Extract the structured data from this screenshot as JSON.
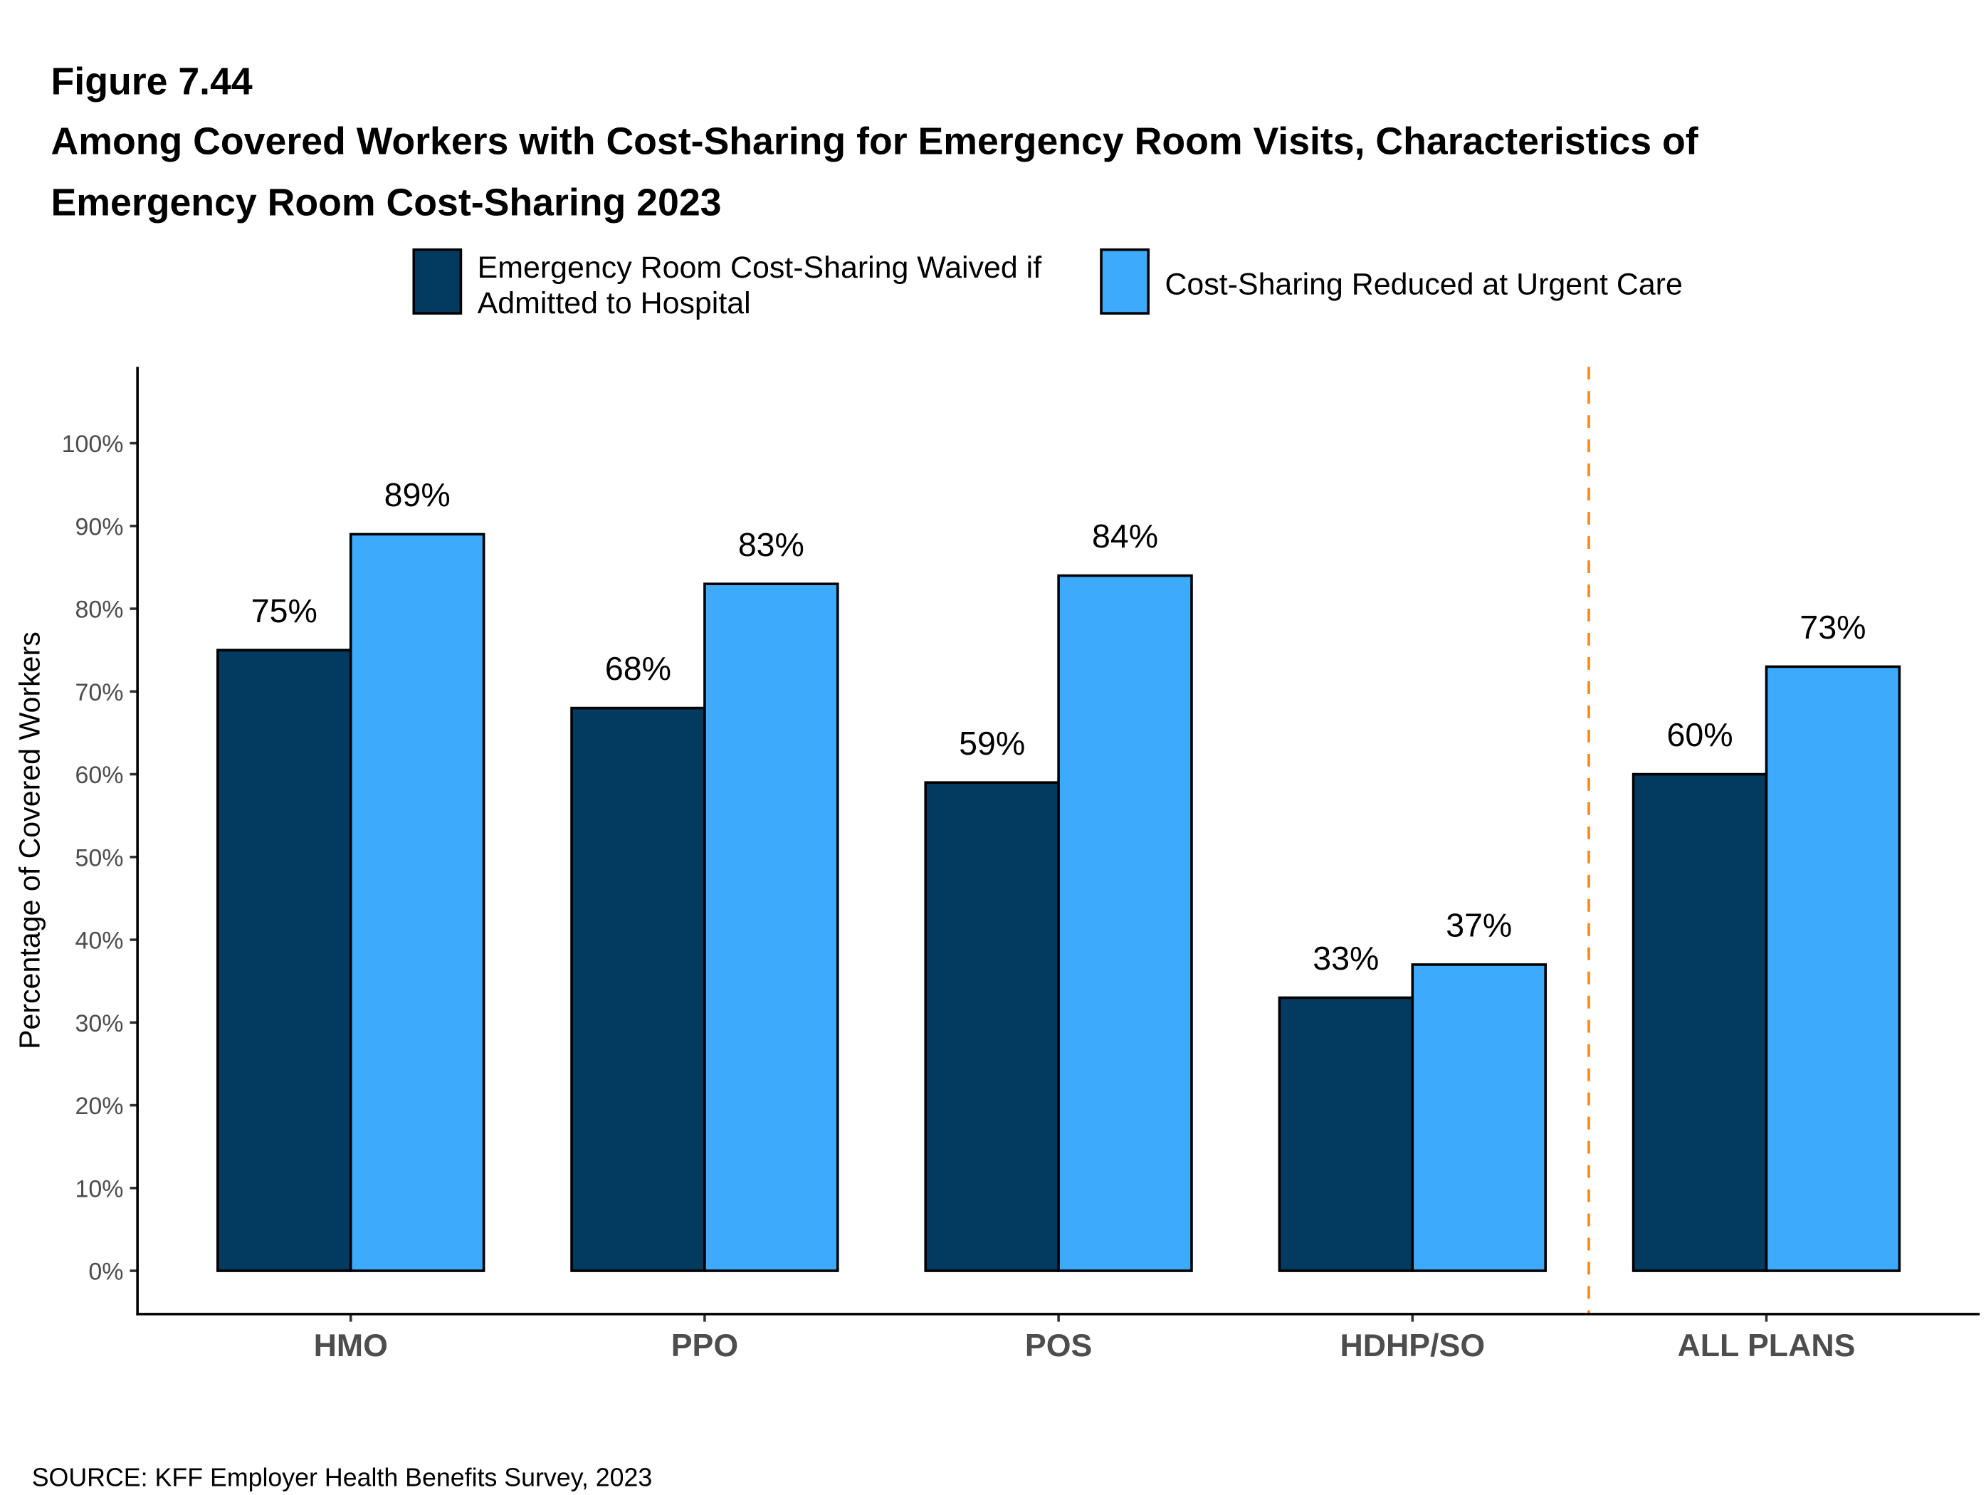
{
  "figure_label": "Figure 7.44",
  "title_lines": [
    "Among Covered Workers with Cost-Sharing for Emergency Room Visits, Characteristics of",
    "Emergency Room Cost-Sharing 2023"
  ],
  "source": "SOURCE: KFF Employer Health Benefits Survey, 2023",
  "chart_data": {
    "type": "bar",
    "title": "Among Covered Workers with Cost-Sharing for Emergency Room Visits, Characteristics of Emergency Room Cost-Sharing 2023",
    "xlabel": "",
    "ylabel": "Percentage of Covered Workers",
    "ylim": [
      0,
      100
    ],
    "yticks": [
      "0%",
      "10%",
      "20%",
      "30%",
      "40%",
      "50%",
      "60%",
      "70%",
      "80%",
      "90%",
      "100%"
    ],
    "categories": [
      "HMO",
      "PPO",
      "POS",
      "HDHP/SO",
      "ALL PLANS"
    ],
    "series": [
      {
        "name": "Emergency Room Cost-Sharing Waived if Admitted to Hospital",
        "legend_lines": [
          "Emergency Room Cost-Sharing Waived if",
          "Admitted to Hospital"
        ],
        "color": "#023A60",
        "values": [
          75,
          68,
          59,
          33,
          60
        ],
        "labels": [
          "75%",
          "68%",
          "59%",
          "33%",
          "60%"
        ]
      },
      {
        "name": "Cost-Sharing Reduced at Urgent Care",
        "legend_lines": [
          "Cost-Sharing Reduced at Urgent Care"
        ],
        "color": "#3DAAFC",
        "values": [
          89,
          83,
          84,
          37,
          73
        ],
        "labels": [
          "89%",
          "83%",
          "84%",
          "37%",
          "73%"
        ]
      }
    ],
    "legend_position": "top",
    "grid": false,
    "separator_color": "#F7861D"
  }
}
